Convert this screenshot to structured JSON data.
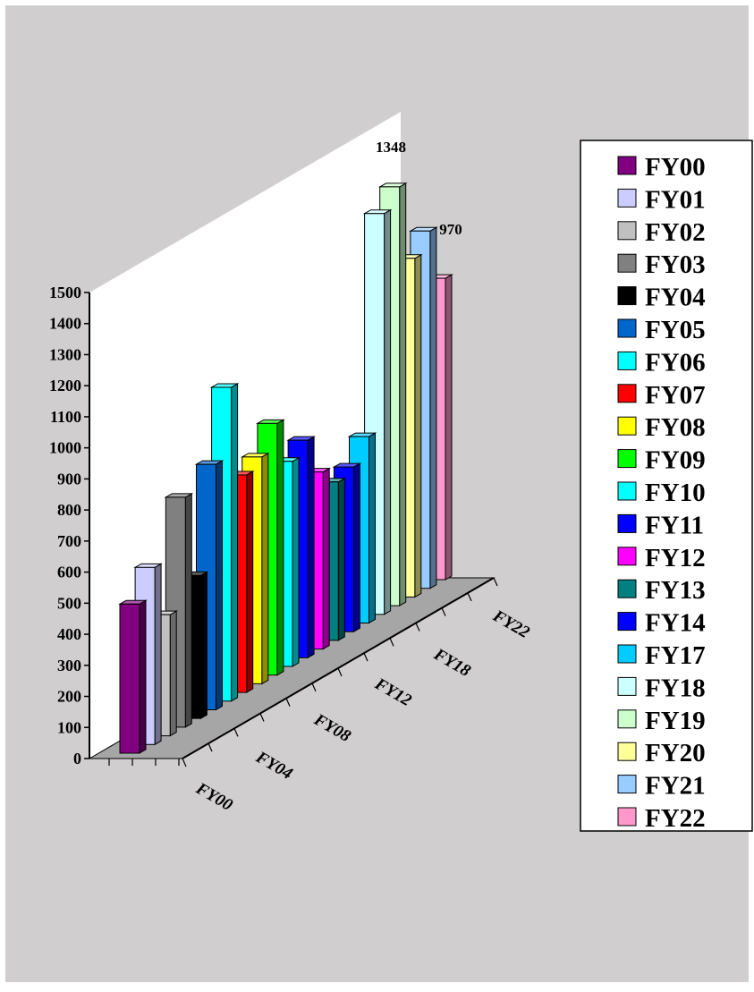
{
  "chart_data": {
    "type": "bar",
    "style": "3d-column",
    "title": "",
    "xlabel": "",
    "ylabel": "",
    "ylim": [
      0,
      1500
    ],
    "y_ticks": [
      0,
      100,
      200,
      300,
      400,
      500,
      600,
      700,
      800,
      900,
      1000,
      1100,
      1200,
      1300,
      1400,
      1500
    ],
    "x_tick_labels": [
      "FY00",
      "FY04",
      "FY08",
      "FY12",
      "FY18",
      "FY22"
    ],
    "grid": false,
    "legend_position": "right",
    "series": [
      {
        "name": "FY00",
        "value": 480,
        "color": "#800080"
      },
      {
        "name": "FY01",
        "value": 570,
        "color": "#ccccff"
      },
      {
        "name": "FY02",
        "value": 390,
        "color": "#c0c0c0"
      },
      {
        "name": "FY03",
        "value": 740,
        "color": "#808080"
      },
      {
        "name": "FY04",
        "value": 460,
        "color": "#000000"
      },
      {
        "name": "FY05",
        "value": 790,
        "color": "#0066cc"
      },
      {
        "name": "FY06",
        "value": 1010,
        "color": "#00ffff"
      },
      {
        "name": "FY07",
        "value": 700,
        "color": "#ff0000"
      },
      {
        "name": "FY08",
        "value": 730,
        "color": "#ffff00"
      },
      {
        "name": "FY09",
        "value": 810,
        "color": "#00ff00"
      },
      {
        "name": "FY10",
        "value": 660,
        "color": "#00ffff"
      },
      {
        "name": "FY11",
        "value": 700,
        "color": "#0000ff"
      },
      {
        "name": "FY12",
        "value": 570,
        "color": "#ff00ff"
      },
      {
        "name": "FY13",
        "value": 510,
        "color": "#008080"
      },
      {
        "name": "FY14",
        "value": 530,
        "color": "#0000ff"
      },
      {
        "name": "FY17",
        "value": 600,
        "color": "#00ccff"
      },
      {
        "name": "FY18",
        "value": 1290,
        "color": "#ccffff"
      },
      {
        "name": "FY19",
        "value": 1348,
        "color": "#ccffcc"
      },
      {
        "name": "FY20",
        "value": 1090,
        "color": "#ffff99"
      },
      {
        "name": "FY21",
        "value": 1150,
        "color": "#99ccff"
      },
      {
        "name": "FY22",
        "value": 970,
        "color": "#ff99cc"
      }
    ],
    "data_labels": [
      {
        "series": "FY19",
        "text": "1348"
      },
      {
        "series": "FY22",
        "text": "970"
      }
    ],
    "colors": {
      "background": "#d0cece",
      "wall": "#ffffff",
      "floor": "#a6a6a6"
    }
  }
}
